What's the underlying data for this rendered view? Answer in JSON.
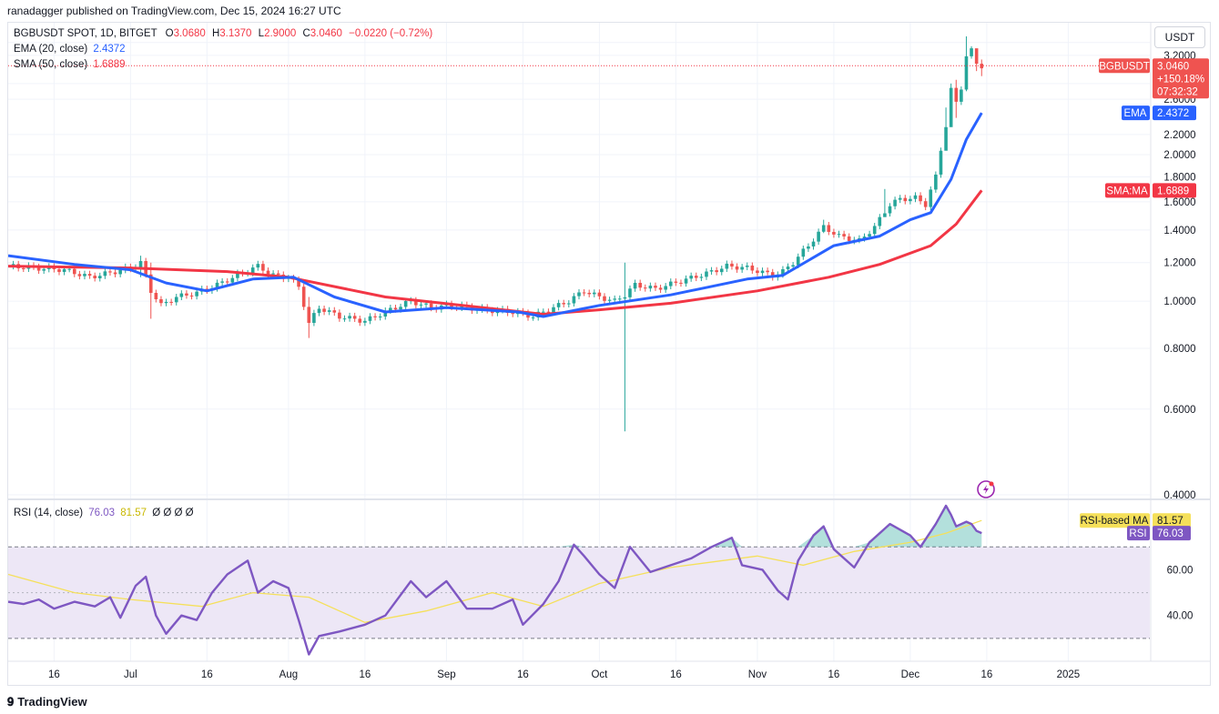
{
  "publisher_line": "ranadagger published on TradingView.com, Dec 15, 2024 16:27 UTC",
  "legend": {
    "symbol": "BGBUSDT SPOT, 1D, BITGET",
    "ohlc": {
      "o_label": "O",
      "o": "3.0680",
      "h_label": "H",
      "h": "3.1370",
      "l_label": "L",
      "l": "2.9000",
      "c_label": "C",
      "c": "3.0460",
      "change": "−0.0220 (−0.72%)"
    },
    "ema_label": "EMA (20, close)",
    "ema_value": "2.4372",
    "sma_label": "SMA (50, close)",
    "sma_value": "1.6889",
    "rsi_label": "RSI (14, close)",
    "rsi_value": "76.03",
    "rsi_ma_value": "81.57",
    "rsi_extra": "Ø Ø Ø Ø"
  },
  "currency_button": "USDT",
  "price_tags": {
    "symbol_tag": "BGBUSDT",
    "price": "3.0460",
    "pct": "+150.18%",
    "countdown": "07:32:32",
    "ema_tag": "EMA",
    "ema_val": "2.4372",
    "sma_tag": "SMA:MA",
    "sma_val": "1.6889"
  },
  "rsi_tags": {
    "ma_tag": "RSI-based MA",
    "ma_val": "81.57",
    "rsi_tag": "RSI",
    "rsi_val": "76.03"
  },
  "branding": "TradingView",
  "colors": {
    "up": "#26a69a",
    "down": "#ef5350",
    "ema": "#2962ff",
    "sma": "#f23645",
    "rsi": "#7e57c2",
    "rsi_ma": "#f5e05a",
    "rsi_band": "#ede7f6",
    "price_line": "#f23645"
  },
  "chart_data": [
    {
      "type": "candlestick",
      "title": "BGBUSDT SPOT, 1D, BITGET",
      "ylim": [
        0.4,
        3.5
      ],
      "y_ticks": [
        "3.4000",
        "3.2000",
        "2.8000",
        "2.6000",
        "2.2000",
        "2.0000",
        "1.8000",
        "1.6000",
        "1.4000",
        "1.2000",
        "1.0000",
        "0.8000",
        "0.6000",
        "0.4000"
      ],
      "x_ticks": [
        "16",
        "Jul",
        "16",
        "Aug",
        "16",
        "Sep",
        "16",
        "Oct",
        "16",
        "Nov",
        "16",
        "Dec",
        "16",
        "2025"
      ],
      "x_tick_dates": [
        "2024-06-16",
        "2024-07-01",
        "2024-07-16",
        "2024-08-01",
        "2024-08-16",
        "2024-09-01",
        "2024-09-16",
        "2024-10-01",
        "2024-10-16",
        "2024-11-01",
        "2024-11-16",
        "2024-12-01",
        "2024-12-16",
        "2025-01-01"
      ],
      "x_start_date": "2024-06-07",
      "x_end_date": "2025-01-17",
      "last_price": 3.046,
      "close_path": [
        [
          "2024-06-08",
          1.18
        ],
        [
          "2024-06-12",
          1.17
        ],
        [
          "2024-06-18",
          1.16
        ],
        [
          "2024-06-23",
          1.12
        ],
        [
          "2024-06-28",
          1.15
        ],
        [
          "2024-07-01",
          1.17
        ],
        [
          "2024-07-03",
          1.2
        ],
        [
          "2024-07-05",
          1.05
        ],
        [
          "2024-07-07",
          0.98
        ],
        [
          "2024-07-10",
          1.02
        ],
        [
          "2024-07-14",
          1.04
        ],
        [
          "2024-07-18",
          1.08
        ],
        [
          "2024-07-22",
          1.13
        ],
        [
          "2024-07-26",
          1.18
        ],
        [
          "2024-07-29",
          1.13
        ],
        [
          "2024-08-01",
          1.12
        ],
        [
          "2024-08-03",
          1.07
        ],
        [
          "2024-08-05",
          0.9
        ],
        [
          "2024-08-07",
          0.97
        ],
        [
          "2024-08-11",
          0.93
        ],
        [
          "2024-08-16",
          0.91
        ],
        [
          "2024-08-20",
          0.95
        ],
        [
          "2024-08-25",
          1.0
        ],
        [
          "2024-08-29",
          0.97
        ],
        [
          "2024-09-02",
          0.98
        ],
        [
          "2024-09-08",
          0.96
        ],
        [
          "2024-09-14",
          0.95
        ],
        [
          "2024-09-18",
          0.93
        ],
        [
          "2024-09-21",
          0.96
        ],
        [
          "2024-09-25",
          1.0
        ],
        [
          "2024-09-28",
          1.05
        ],
        [
          "2024-10-01",
          1.02
        ],
        [
          "2024-10-04",
          1.0
        ],
        [
          "2024-10-06",
          1.03
        ],
        [
          "2024-10-08",
          1.08
        ],
        [
          "2024-10-12",
          1.06
        ],
        [
          "2024-10-17",
          1.1
        ],
        [
          "2024-10-22",
          1.14
        ],
        [
          "2024-10-26",
          1.18
        ],
        [
          "2024-10-30",
          1.17
        ],
        [
          "2024-11-04",
          1.13
        ],
        [
          "2024-11-06",
          1.15
        ],
        [
          "2024-11-08",
          1.2
        ],
        [
          "2024-11-11",
          1.3
        ],
        [
          "2024-11-14",
          1.42
        ],
        [
          "2024-11-17",
          1.36
        ],
        [
          "2024-11-21",
          1.33
        ],
        [
          "2024-11-24",
          1.42
        ],
        [
          "2024-11-27",
          1.58
        ],
        [
          "2024-11-29",
          1.62
        ],
        [
          "2024-12-02",
          1.63
        ],
        [
          "2024-12-04",
          1.58
        ],
        [
          "2024-12-06",
          1.8
        ],
        [
          "2024-12-08",
          2.3
        ],
        [
          "2024-12-09",
          2.72
        ],
        [
          "2024-12-10",
          2.55
        ],
        [
          "2024-12-11",
          2.75
        ],
        [
          "2024-12-12",
          3.2
        ],
        [
          "2024-12-13",
          3.27
        ],
        [
          "2024-12-14",
          3.07
        ],
        [
          "2024-12-15",
          3.046
        ]
      ],
      "wicks": [
        [
          "2024-07-03",
          1.12,
          1.24
        ],
        [
          "2024-07-05",
          0.92,
          1.2
        ],
        [
          "2024-08-05",
          0.84,
          1.02
        ],
        [
          "2024-10-06",
          0.54,
          1.2
        ],
        [
          "2024-11-14",
          1.38,
          1.47
        ],
        [
          "2024-11-26",
          1.5,
          1.7
        ],
        [
          "2024-12-08",
          2.22,
          2.5
        ],
        [
          "2024-12-09",
          2.6,
          2.8
        ],
        [
          "2024-12-10",
          2.38,
          2.85
        ],
        [
          "2024-12-12",
          2.7,
          3.5
        ],
        [
          "2024-12-13",
          3.15,
          3.34
        ],
        [
          "2024-12-14",
          2.97,
          3.24
        ],
        [
          "2024-12-15",
          2.9,
          3.137
        ]
      ],
      "series": [
        {
          "name": "EMA (20, close)",
          "points": [
            [
              "2024-06-07",
              1.24
            ],
            [
              "2024-06-20",
              1.19
            ],
            [
              "2024-07-01",
              1.16
            ],
            [
              "2024-07-08",
              1.09
            ],
            [
              "2024-07-16",
              1.05
            ],
            [
              "2024-07-25",
              1.11
            ],
            [
              "2024-08-02",
              1.12
            ],
            [
              "2024-08-10",
              1.02
            ],
            [
              "2024-08-20",
              0.95
            ],
            [
              "2024-09-01",
              0.97
            ],
            [
              "2024-09-15",
              0.95
            ],
            [
              "2024-09-20",
              0.93
            ],
            [
              "2024-10-01",
              0.98
            ],
            [
              "2024-10-15",
              1.03
            ],
            [
              "2024-10-30",
              1.11
            ],
            [
              "2024-11-06",
              1.13
            ],
            [
              "2024-11-16",
              1.3
            ],
            [
              "2024-11-25",
              1.36
            ],
            [
              "2024-12-01",
              1.47
            ],
            [
              "2024-12-05",
              1.52
            ],
            [
              "2024-12-09",
              1.78
            ],
            [
              "2024-12-12",
              2.15
            ],
            [
              "2024-12-15",
              2.4372
            ]
          ]
        },
        {
          "name": "SMA (50, close)",
          "points": [
            [
              "2024-06-07",
              1.18
            ],
            [
              "2024-07-01",
              1.17
            ],
            [
              "2024-07-20",
              1.15
            ],
            [
              "2024-08-01",
              1.12
            ],
            [
              "2024-08-20",
              1.02
            ],
            [
              "2024-09-20",
              0.94
            ],
            [
              "2024-10-01",
              0.96
            ],
            [
              "2024-10-15",
              0.99
            ],
            [
              "2024-11-01",
              1.05
            ],
            [
              "2024-11-15",
              1.12
            ],
            [
              "2024-11-25",
              1.19
            ],
            [
              "2024-12-05",
              1.3
            ],
            [
              "2024-12-10",
              1.44
            ],
            [
              "2024-12-15",
              1.6889
            ]
          ]
        }
      ]
    },
    {
      "type": "line",
      "title": "RSI (14, close)",
      "ylim": [
        20,
        90
      ],
      "y_ticks": [
        "60.00",
        "40.00"
      ],
      "band": [
        30,
        70
      ],
      "series": [
        {
          "name": "RSI (14, close)",
          "points": [
            [
              "2024-06-07",
              46
            ],
            [
              "2024-06-10",
              45
            ],
            [
              "2024-06-13",
              47
            ],
            [
              "2024-06-16",
              43
            ],
            [
              "2024-06-20",
              46
            ],
            [
              "2024-06-24",
              44
            ],
            [
              "2024-06-27",
              48
            ],
            [
              "2024-06-29",
              39
            ],
            [
              "2024-07-02",
              53
            ],
            [
              "2024-07-04",
              57
            ],
            [
              "2024-07-06",
              40
            ],
            [
              "2024-07-08",
              32
            ],
            [
              "2024-07-11",
              40
            ],
            [
              "2024-07-14",
              38
            ],
            [
              "2024-07-17",
              50
            ],
            [
              "2024-07-20",
              58
            ],
            [
              "2024-07-24",
              64
            ],
            [
              "2024-07-26",
              50
            ],
            [
              "2024-07-29",
              55
            ],
            [
              "2024-08-01",
              52
            ],
            [
              "2024-08-03",
              38
            ],
            [
              "2024-08-05",
              23
            ],
            [
              "2024-08-07",
              31
            ],
            [
              "2024-08-11",
              33
            ],
            [
              "2024-08-16",
              36
            ],
            [
              "2024-08-20",
              40
            ],
            [
              "2024-08-25",
              55
            ],
            [
              "2024-08-28",
              48
            ],
            [
              "2024-09-01",
              55
            ],
            [
              "2024-09-05",
              43
            ],
            [
              "2024-09-10",
              43
            ],
            [
              "2024-09-14",
              47
            ],
            [
              "2024-09-16",
              36
            ],
            [
              "2024-09-20",
              45
            ],
            [
              "2024-09-23",
              55
            ],
            [
              "2024-09-26",
              71
            ],
            [
              "2024-09-28",
              66
            ],
            [
              "2024-10-01",
              58
            ],
            [
              "2024-10-04",
              52
            ],
            [
              "2024-10-07",
              70
            ],
            [
              "2024-10-11",
              59
            ],
            [
              "2024-10-15",
              62
            ],
            [
              "2024-10-19",
              65
            ],
            [
              "2024-10-23",
              70
            ],
            [
              "2024-10-27",
              74
            ],
            [
              "2024-10-29",
              62
            ],
            [
              "2024-11-02",
              60
            ],
            [
              "2024-11-05",
              51
            ],
            [
              "2024-11-07",
              47
            ],
            [
              "2024-11-09",
              64
            ],
            [
              "2024-11-12",
              75
            ],
            [
              "2024-11-14",
              79
            ],
            [
              "2024-11-16",
              69
            ],
            [
              "2024-11-20",
              61
            ],
            [
              "2024-11-23",
              72
            ],
            [
              "2024-11-27",
              80
            ],
            [
              "2024-12-01",
              75
            ],
            [
              "2024-12-03",
              70
            ],
            [
              "2024-12-06",
              80
            ],
            [
              "2024-12-08",
              88
            ],
            [
              "2024-12-09",
              84
            ],
            [
              "2024-12-10",
              79
            ],
            [
              "2024-12-12",
              81
            ],
            [
              "2024-12-13",
              80
            ],
            [
              "2024-12-14",
              77
            ],
            [
              "2024-12-15",
              76.03
            ]
          ]
        },
        {
          "name": "RSI-based MA",
          "points": [
            [
              "2024-06-07",
              58
            ],
            [
              "2024-06-20",
              50
            ],
            [
              "2024-07-01",
              47
            ],
            [
              "2024-07-15",
              44
            ],
            [
              "2024-07-25",
              50
            ],
            [
              "2024-08-05",
              48
            ],
            [
              "2024-08-16",
              37
            ],
            [
              "2024-08-28",
              42
            ],
            [
              "2024-09-10",
              50
            ],
            [
              "2024-09-20",
              44
            ],
            [
              "2024-10-01",
              54
            ],
            [
              "2024-10-15",
              61
            ],
            [
              "2024-11-01",
              66
            ],
            [
              "2024-11-10",
              62
            ],
            [
              "2024-11-20",
              68
            ],
            [
              "2024-12-01",
              72
            ],
            [
              "2024-12-08",
              76
            ],
            [
              "2024-12-15",
              81.57
            ]
          ]
        }
      ]
    }
  ]
}
